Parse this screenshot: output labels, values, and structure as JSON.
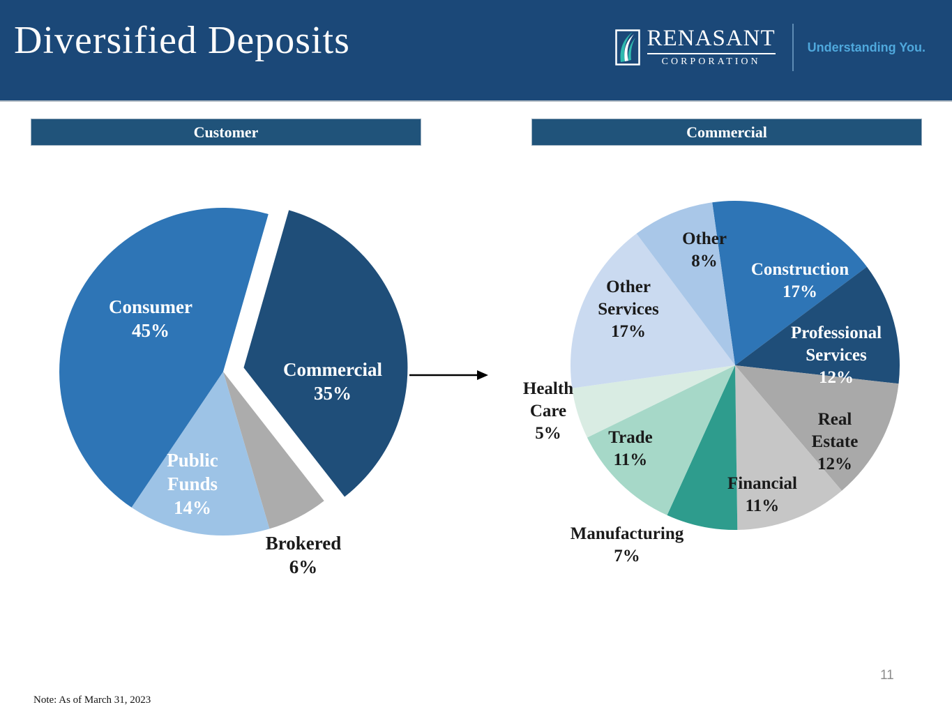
{
  "header": {
    "bg": "#1B4878",
    "title": "Diversified Deposits",
    "logo": {
      "name": "RENASANT",
      "subname": "CORPORATION",
      "tagline": "Understanding You.",
      "tagline_color": "#4FA8DC",
      "feather_teal": "#2FB9AE"
    }
  },
  "section_headers": {
    "left": "Customer",
    "right": "Commercial",
    "bg": "#20537A",
    "text_color": "#FFFFFF"
  },
  "chart_data": [
    {
      "type": "pie",
      "title": "Customer",
      "start_angle_deg": 16,
      "direction": "clockwise",
      "labels_show_percent": true,
      "slices": [
        {
          "label": "Commercial",
          "value": 35,
          "color": "#1F4E79",
          "text_color": "#FFFFFF",
          "exploded": true
        },
        {
          "label": "Brokered",
          "value": 6,
          "color": "#ACACAC",
          "text_color": "#1A1A1A",
          "label_outside": true
        },
        {
          "label": "Public Funds",
          "value": 14,
          "color": "#9DC3E6",
          "text_color": "#FFFFFF"
        },
        {
          "label": "Consumer",
          "value": 45,
          "color": "#2E75B6",
          "text_color": "#FFFFFF"
        }
      ]
    },
    {
      "type": "pie",
      "title": "Commercial",
      "start_angle_deg": -8,
      "direction": "clockwise",
      "labels_show_percent": true,
      "slices": [
        {
          "label": "Construction",
          "value": 17,
          "color": "#2E75B6",
          "text_color": "#FFFFFF"
        },
        {
          "label": "Professional Services",
          "value": 12,
          "color": "#1F4E79",
          "text_color": "#FFFFFF"
        },
        {
          "label": "Real Estate",
          "value": 12,
          "color": "#A9A9A9",
          "text_color": "#1A1A1A"
        },
        {
          "label": "Financial",
          "value": 11,
          "color": "#C6C6C6",
          "text_color": "#1A1A1A"
        },
        {
          "label": "Manufacturing",
          "value": 7,
          "color": "#2E9C8D",
          "text_color": "#1A1A1A",
          "label_outside": true
        },
        {
          "label": "Trade",
          "value": 11,
          "color": "#A6D8C8",
          "text_color": "#1A1A1A"
        },
        {
          "label": "Health Care",
          "value": 5,
          "color": "#D9ECE3",
          "text_color": "#1A1A1A",
          "label_outside": true
        },
        {
          "label": "Other Services",
          "value": 17,
          "color": "#CADAF0",
          "text_color": "#1A1A1A"
        },
        {
          "label": "Other",
          "value": 8,
          "color": "#A9C7E8",
          "text_color": "#1A1A1A"
        }
      ]
    }
  ],
  "arrow": {
    "meaning": "commercial-slice-detail",
    "color": "#000000"
  },
  "footer": {
    "note": "Note: As of March 31, 2023",
    "page_number": "11"
  }
}
